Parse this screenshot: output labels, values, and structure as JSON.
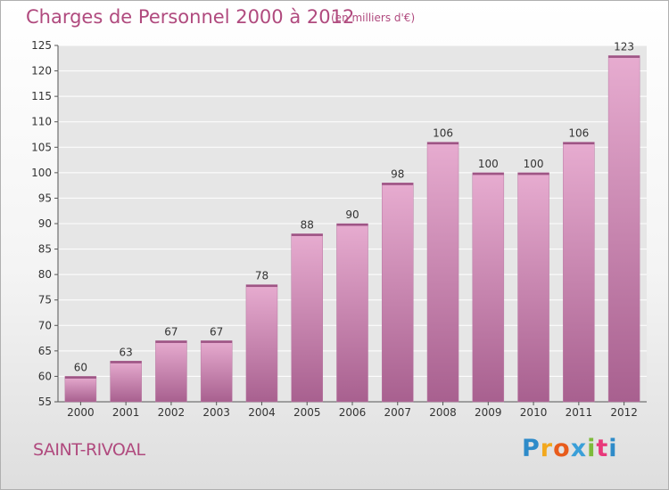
{
  "header": {
    "title": "Charges de Personnel 2000 à 2012",
    "subtitle": "(en milliers d'€)"
  },
  "footer": {
    "commune": "SAINT-RIVOAL",
    "logo_text": "Proxiti",
    "logo_colors": [
      "#2e8bc9",
      "#f2a81d",
      "#e85c1c",
      "#3a9fd8",
      "#7dbb3a",
      "#e8397a",
      "#2e8bc9"
    ]
  },
  "colors": {
    "bar": "#c97fae",
    "bar_light": "#e7acd0",
    "bar_dark": "#a8608f",
    "axis_text": "#333333",
    "grid": "#ffffff"
  },
  "chart_data": {
    "type": "bar",
    "categories": [
      "2000",
      "2001",
      "2002",
      "2003",
      "2004",
      "2005",
      "2006",
      "2007",
      "2008",
      "2009",
      "2010",
      "2011",
      "2012"
    ],
    "values": [
      60,
      63,
      67,
      67,
      78,
      88,
      90,
      98,
      106,
      100,
      100,
      106,
      123
    ],
    "ylim": [
      55,
      125
    ],
    "yticks": [
      55,
      60,
      65,
      70,
      75,
      80,
      85,
      90,
      95,
      100,
      105,
      110,
      115,
      120,
      125
    ],
    "grid": true
  }
}
